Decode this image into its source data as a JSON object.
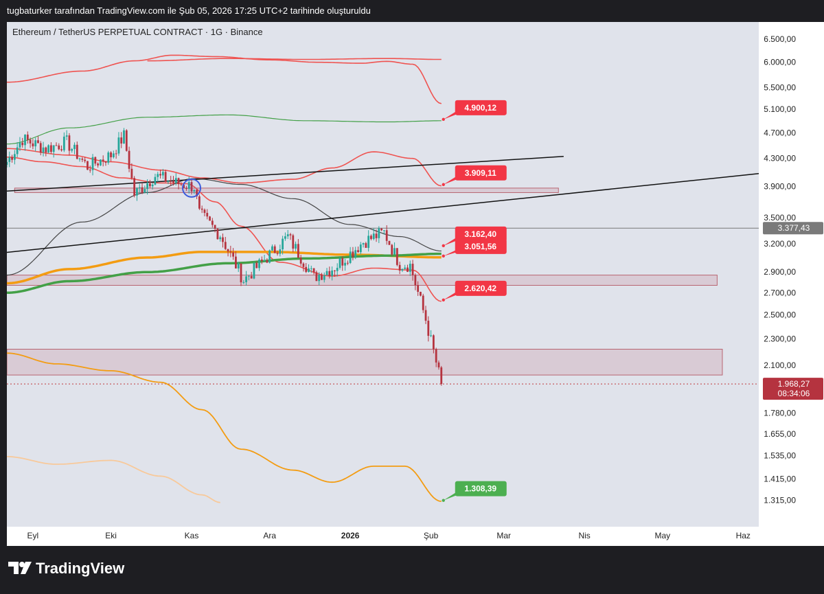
{
  "header": {
    "caption": "tugbaturker tarafından TradingView.com ile Şub 05, 2026 17:25 UTC+2 tarihinde oluşturuldu"
  },
  "symbol_title": "Ethereum / TetherUS PERPETUAL CONTRACT · 1G · Binance",
  "footer": {
    "brand": "TradingView"
  },
  "colors": {
    "chart_bg": "#e0e3eb",
    "candle_up": "#26a69a",
    "candle_down": "#b5333f",
    "band_red": "#ef5350",
    "orange": "#f39c12",
    "green": "#43a047",
    "label_red": "#f23645",
    "label_green": "#4caf50"
  },
  "chart_data": {
    "type": "candlestick",
    "symbol": "Ethereum / TetherUS PERPETUAL CONTRACT",
    "interval": "1G",
    "exchange": "Binance",
    "y_scale": "log",
    "ylim": [
      1200,
      6900
    ],
    "price_ticks": [
      "6.500,00",
      "6.000,00",
      "5.500,00",
      "5.100,00",
      "4.700,00",
      "4.300,00",
      "3.900,00",
      "3.500,00",
      "3.200,00",
      "2.900,00",
      "2.700,00",
      "2.500,00",
      "2.300,00",
      "2.100,00",
      "1.780,00",
      "1.655,00",
      "1.535,00",
      "1.415,00",
      "1.315,00"
    ],
    "price_tick_values": [
      6500,
      6000,
      5500,
      5100,
      4700,
      4300,
      3900,
      3500,
      3200,
      2900,
      2700,
      2500,
      2300,
      2100,
      1780,
      1655,
      1535,
      1415,
      1315
    ],
    "time_ticks": [
      {
        "label": "Eyl",
        "date": "2025-09-01",
        "bold": false
      },
      {
        "label": "Eki",
        "date": "2025-10-01",
        "bold": false
      },
      {
        "label": "Kas",
        "date": "2025-11-01",
        "bold": false
      },
      {
        "label": "Ara",
        "date": "2025-12-01",
        "bold": false
      },
      {
        "label": "2026",
        "date": "2026-01-01",
        "bold": true
      },
      {
        "label": "Şub",
        "date": "2026-02-01",
        "bold": false
      },
      {
        "label": "Mar",
        "date": "2026-03-01",
        "bold": false
      },
      {
        "label": "Nis",
        "date": "2026-04-01",
        "bold": false
      },
      {
        "label": "May",
        "date": "2026-05-01",
        "bold": false
      },
      {
        "label": "Haz",
        "date": "2026-06-01",
        "bold": false
      }
    ],
    "xlim": [
      "2025-08-22",
      "2026-06-07"
    ],
    "current_price": "1.968,27",
    "current_price_value": 1968.27,
    "countdown": "08:34:06",
    "horizontal_line": {
      "label": "3.377,43",
      "value": 3377.43
    },
    "price_labels": [
      {
        "text": "4.900,12",
        "value": 4900.12,
        "date": "2026-02-05",
        "color": "#f23645"
      },
      {
        "text": "3.909,11",
        "value": 3909.11,
        "date": "2026-02-05",
        "color": "#f23645"
      },
      {
        "text": "3.162,40",
        "value": 3162.4,
        "date": "2026-02-05",
        "color": "#f23645"
      },
      {
        "text": "3.051,56",
        "value": 3051.56,
        "date": "2026-02-05",
        "color": "#f23645"
      },
      {
        "text": "2.620,42",
        "value": 2620.42,
        "date": "2026-02-05",
        "color": "#f23645"
      },
      {
        "text": "1.308,39",
        "value": 1308.39,
        "date": "2026-02-05",
        "color": "#4caf50"
      }
    ],
    "zones": [
      {
        "from_date": "2025-08-25",
        "to_date": "2026-03-22",
        "low": 3820,
        "high": 3880
      },
      {
        "from_date": "2025-08-22",
        "to_date": "2026-05-22",
        "low": 2770,
        "high": 2870
      },
      {
        "from_date": "2025-08-22",
        "to_date": "2026-05-24",
        "low": 2030,
        "high": 2220
      }
    ],
    "trendlines": [
      {
        "from": [
          "2025-08-22",
          3840
        ],
        "to": [
          "2026-03-24",
          4330
        ]
      },
      {
        "from": [
          "2025-08-22",
          3105
        ],
        "to": [
          "2026-06-07",
          4080
        ]
      }
    ],
    "circle_marker": {
      "date": "2025-11-01",
      "value": 3880
    },
    "series": [
      {
        "role": "upper_band_outer",
        "color": "#ef5350",
        "x": [
          "2025-08-22",
          "2025-09-20",
          "2025-10-10",
          "2025-10-25",
          "2025-11-10",
          "2025-12-01",
          "2025-12-20",
          "2026-01-05",
          "2026-01-15",
          "2026-01-25",
          "2026-02-05"
        ],
        "y": [
          5600,
          5820,
          6030,
          6150,
          6120,
          6050,
          6000,
          5980,
          6020,
          5960,
          5200
        ]
      },
      {
        "role": "upper_band_flat",
        "color": "#ef5350",
        "x": [
          "2025-10-15",
          "2025-11-15",
          "2025-12-15",
          "2026-01-15",
          "2026-02-05"
        ],
        "y": [
          6030,
          6080,
          6060,
          6080,
          6060
        ]
      },
      {
        "role": "sma_green_top",
        "color": "#43a047",
        "x": [
          "2025-08-22",
          "2025-09-15",
          "2025-10-15",
          "2025-11-15",
          "2025-12-15",
          "2026-01-15",
          "2026-02-05"
        ],
        "y": [
          4520,
          4780,
          4960,
          5000,
          4900,
          4880,
          4900
        ]
      },
      {
        "role": "mid_band_red",
        "color": "#ef5350",
        "x": [
          "2025-08-22",
          "2025-09-15",
          "2025-10-01",
          "2025-10-20",
          "2025-11-05",
          "2025-11-20",
          "2025-12-10",
          "2025-12-25",
          "2026-01-10",
          "2026-01-25",
          "2026-02-05"
        ],
        "y": [
          4450,
          4350,
          4250,
          4130,
          4020,
          3950,
          4000,
          4160,
          4400,
          4300,
          3910
        ]
      },
      {
        "role": "lower_band_red",
        "color": "#ef5350",
        "x": [
          "2025-08-22",
          "2025-09-05",
          "2025-09-20",
          "2025-10-05",
          "2025-10-20",
          "2025-10-30",
          "2025-11-10",
          "2025-11-20",
          "2025-12-05",
          "2025-12-25",
          "2026-01-10",
          "2026-01-25",
          "2026-02-05"
        ],
        "y": [
          4320,
          4250,
          4180,
          4020,
          3950,
          3940,
          3700,
          3400,
          3000,
          2860,
          2940,
          2920,
          2620
        ]
      },
      {
        "role": "dark_ma",
        "color": "#444444",
        "x": [
          "2025-08-22",
          "2025-09-20",
          "2025-10-15",
          "2025-11-02",
          "2025-11-20",
          "2025-12-10",
          "2026-01-01",
          "2026-01-20",
          "2026-02-05"
        ],
        "y": [
          2870,
          3450,
          3820,
          4010,
          3930,
          3740,
          3420,
          3280,
          3120
        ]
      },
      {
        "role": "ma_orange",
        "color": "#f39c12",
        "x": [
          "2025-08-22",
          "2025-09-15",
          "2025-10-15",
          "2025-11-05",
          "2025-12-01",
          "2026-01-01",
          "2026-02-05"
        ],
        "y": [
          2790,
          2930,
          3050,
          3110,
          3110,
          3080,
          3052
        ]
      },
      {
        "role": "ma_green",
        "color": "#43a047",
        "x": [
          "2025-08-22",
          "2025-09-15",
          "2025-10-15",
          "2025-11-15",
          "2025-12-15",
          "2026-01-15",
          "2026-02-05"
        ],
        "y": [
          2700,
          2810,
          2900,
          2990,
          3040,
          3070,
          3090
        ]
      },
      {
        "role": "lower_band_orange",
        "color": "#f39c12",
        "x": [
          "2025-08-22",
          "2025-09-10",
          "2025-10-01",
          "2025-10-20",
          "2025-11-05",
          "2025-11-20",
          "2025-12-10",
          "2025-12-25",
          "2026-01-10",
          "2026-01-22",
          "2026-02-05"
        ],
        "y": [
          2190,
          2110,
          2060,
          1980,
          1800,
          1570,
          1460,
          1400,
          1480,
          1480,
          1310
        ]
      },
      {
        "role": "faint_orange",
        "color": "#f8c99a",
        "x": [
          "2025-08-22",
          "2025-09-10",
          "2025-10-01",
          "2025-10-20",
          "2025-11-05",
          "2025-11-12"
        ],
        "y": [
          1530,
          1490,
          1510,
          1430,
          1340,
          1305
        ]
      }
    ],
    "candles_waypoints": {
      "x": [
        "2025-08-22",
        "2025-08-28",
        "2025-09-06",
        "2025-09-14",
        "2025-09-22",
        "2025-10-01",
        "2025-10-06",
        "2025-10-10",
        "2025-10-18",
        "2025-10-26",
        "2025-11-02",
        "2025-11-04",
        "2025-11-12",
        "2025-11-21",
        "2025-11-28",
        "2025-12-08",
        "2025-12-18",
        "2025-12-26",
        "2026-01-06",
        "2026-01-14",
        "2026-01-20",
        "2026-01-24",
        "2026-01-30",
        "2026-02-05"
      ],
      "y": [
        4250,
        4600,
        4450,
        4550,
        4180,
        4350,
        4650,
        3800,
        4050,
        3950,
        3900,
        3550,
        3300,
        2820,
        3000,
        3280,
        2850,
        2950,
        3220,
        3330,
        2980,
        2970,
        2460,
        1968.27
      ]
    }
  }
}
